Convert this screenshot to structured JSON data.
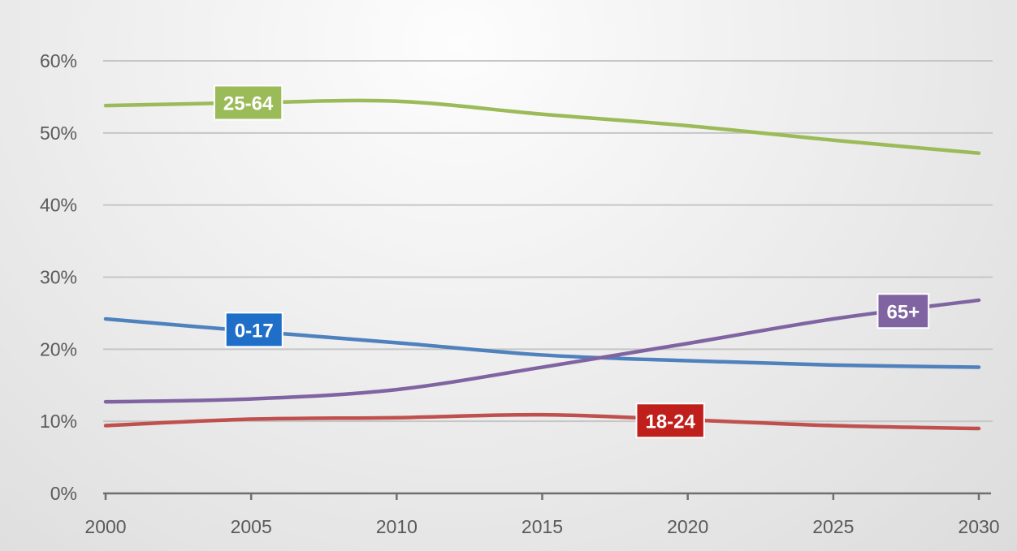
{
  "chart_data": {
    "type": "line",
    "x": [
      2000,
      2005,
      2010,
      2015,
      2020,
      2025,
      2030
    ],
    "xlim": [
      2000,
      2030
    ],
    "ylim": [
      0,
      60
    ],
    "y_ticks": [
      "0%",
      "10%",
      "20%",
      "30%",
      "40%",
      "50%",
      "60%"
    ],
    "x_ticks": [
      "2000",
      "2005",
      "2010",
      "2015",
      "2020",
      "2025",
      "2030"
    ],
    "grid": true,
    "series": [
      {
        "name": "25-64",
        "color": "#9bbb59",
        "values": [
          53.8,
          54.2,
          54.4,
          52.6,
          51.0,
          49.0,
          47.2
        ]
      },
      {
        "name": "0-17",
        "color": "#4f81bd",
        "values": [
          24.2,
          22.5,
          20.9,
          19.2,
          18.4,
          17.8,
          17.5
        ]
      },
      {
        "name": "65+",
        "color": "#8064a2",
        "values": [
          12.7,
          13.1,
          14.4,
          17.5,
          20.8,
          24.2,
          26.8
        ]
      },
      {
        "name": "18-24",
        "color": "#c0504d",
        "values": [
          9.4,
          10.3,
          10.5,
          10.9,
          10.2,
          9.4,
          9.0
        ]
      }
    ],
    "tags": [
      {
        "series": "25-64",
        "text": "25-64",
        "fill": "#9bbb59",
        "at_x": 2004.9,
        "at_y": 54.2
      },
      {
        "series": "0-17",
        "text": "0-17",
        "fill": "#1f6fc9",
        "at_x": 2005.1,
        "at_y": 22.7
      },
      {
        "series": "65+",
        "text": "65+",
        "fill": "#8064a2",
        "at_x": 2027.4,
        "at_y": 25.3
      },
      {
        "series": "18-24",
        "text": "18-24",
        "fill": "#c0201c",
        "at_x": 2019.4,
        "at_y": 10.1
      }
    ]
  }
}
